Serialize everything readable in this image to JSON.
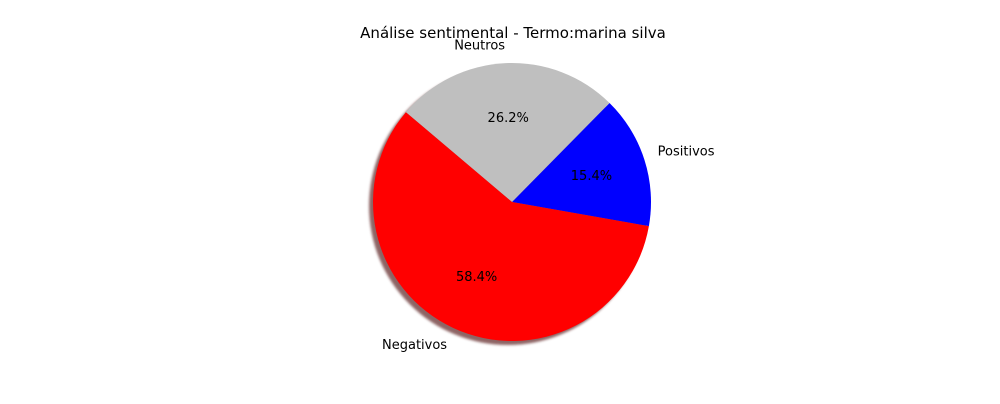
{
  "chart_data": {
    "type": "pie",
    "title": "Análise sentimental - Termo:marina silva",
    "slices": [
      {
        "label": "Positivos",
        "value": 15.4,
        "pct_label": "15.4%",
        "color": "#0000ff"
      },
      {
        "label": "Neutros",
        "value": 26.2,
        "pct_label": "26.2%",
        "color": "#bfbfbf"
      },
      {
        "label": "Negativos",
        "value": 58.4,
        "pct_label": "58.4%",
        "color": "#ff0000"
      }
    ],
    "start_angle_deg": -10,
    "direction": "counterclockwise",
    "shadow": true,
    "legend": "none"
  }
}
